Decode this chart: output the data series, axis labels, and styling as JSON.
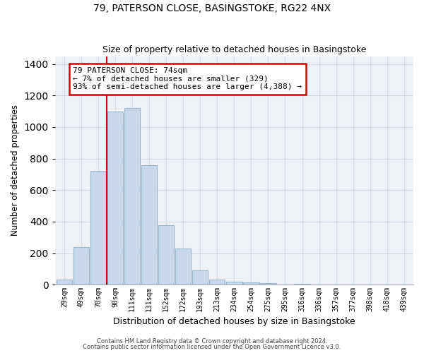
{
  "title": "79, PATERSON CLOSE, BASINGSTOKE, RG22 4NX",
  "subtitle": "Size of property relative to detached houses in Basingstoke",
  "xlabel": "Distribution of detached houses by size in Basingstoke",
  "ylabel": "Number of detached properties",
  "bar_labels": [
    "29sqm",
    "49sqm",
    "70sqm",
    "90sqm",
    "111sqm",
    "131sqm",
    "152sqm",
    "172sqm",
    "193sqm",
    "213sqm",
    "234sqm",
    "254sqm",
    "275sqm",
    "295sqm",
    "316sqm",
    "336sqm",
    "357sqm",
    "377sqm",
    "398sqm",
    "418sqm",
    "439sqm"
  ],
  "bar_values": [
    30,
    240,
    720,
    1100,
    1120,
    760,
    375,
    230,
    90,
    30,
    20,
    15,
    10,
    0,
    5,
    0,
    2,
    0,
    0,
    0,
    0
  ],
  "bar_color": "#c8d8ea",
  "bar_edge_color": "#9ab8d0",
  "vline_x": 2.5,
  "vline_color": "#cc0000",
  "ylim": [
    0,
    1450
  ],
  "yticks": [
    0,
    200,
    400,
    600,
    800,
    1000,
    1200,
    1400
  ],
  "annotation_line1": "79 PATERSON CLOSE: 74sqm",
  "annotation_line2": "← 7% of detached houses are smaller (329)",
  "annotation_line3": "93% of semi-detached houses are larger (4,388) →",
  "footer_line1": "Contains HM Land Registry data © Crown copyright and database right 2024.",
  "footer_line2": "Contains public sector information licensed under the Open Government Licence v3.0.",
  "grid_color": "#d0dce8",
  "background_color": "#eef2f6"
}
